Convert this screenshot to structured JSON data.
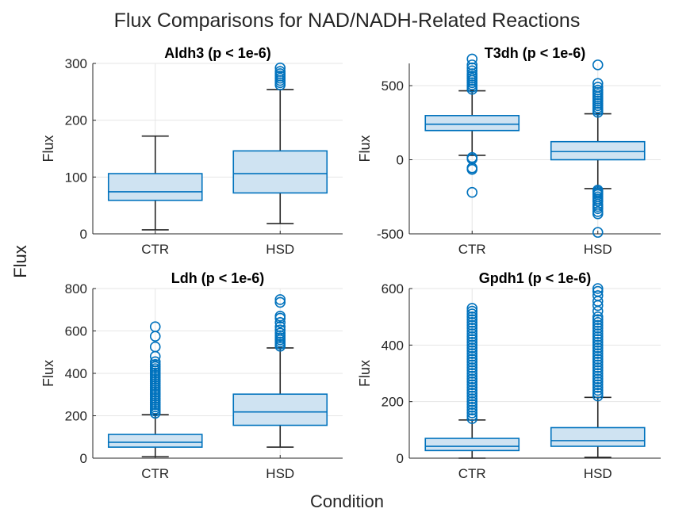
{
  "figure": {
    "title": "Flux Comparisons for NAD/NADH-Related Reactions",
    "xlabel": "Condition",
    "ylabel": "Flux"
  },
  "colors": {
    "box_fill": "#cfe3f2",
    "box_edge": "#0072bd",
    "whisker": "#262626",
    "outlier": "#0072bd",
    "grid": "#e6e6e6",
    "axis": "#262626"
  },
  "chart_data": [
    {
      "type": "box",
      "title": "Aldh3 (p < 1e-6)",
      "ylabel": "Flux",
      "ylim": [
        0,
        300
      ],
      "yticks": [
        0,
        100,
        200,
        300
      ],
      "ytick_labels": [
        "0",
        "100",
        "200",
        "300"
      ],
      "categories": [
        "CTR",
        "HSD"
      ],
      "grid": true,
      "boxes": [
        {
          "category": "CTR",
          "whisker_low": 7,
          "q1": 59,
          "median": 74,
          "q3": 106,
          "whisker_high": 172,
          "outliers": []
        },
        {
          "category": "HSD",
          "whisker_low": 18,
          "q1": 72,
          "median": 106,
          "q3": 146,
          "whisker_high": 254,
          "outliers": [
            262,
            266,
            270,
            274,
            278,
            282,
            286,
            292
          ]
        }
      ]
    },
    {
      "type": "box",
      "title": "T3dh (p < 1e-6)",
      "ylabel": "Flux",
      "ylim": [
        -500,
        650
      ],
      "yticks": [
        -500,
        0,
        500
      ],
      "ytick_labels": [
        "-500",
        "0",
        "500"
      ],
      "categories": [
        "CTR",
        "HSD"
      ],
      "grid": true,
      "boxes": [
        {
          "category": "CTR",
          "whisker_low": 30,
          "q1": 197,
          "median": 240,
          "q3": 298,
          "whisker_high": 465,
          "outliers": [
            475,
            490,
            505,
            520,
            535,
            550,
            565,
            580,
            600,
            620,
            640,
            680,
            15,
            5,
            -55,
            -65,
            -220
          ]
        },
        {
          "category": "HSD",
          "whisker_low": -195,
          "q1": 0,
          "median": 55,
          "q3": 122,
          "whisker_high": 310,
          "outliers": [
            320,
            335,
            350,
            365,
            380,
            395,
            410,
            425,
            440,
            455,
            470,
            490,
            515,
            640,
            -205,
            -215,
            -225,
            -235,
            -250,
            -265,
            -280,
            -300,
            -315,
            -330,
            -350,
            -365,
            -490
          ]
        }
      ]
    },
    {
      "type": "box",
      "title": "Ldh (p < 1e-6)",
      "ylabel": "Flux",
      "ylim": [
        0,
        800
      ],
      "yticks": [
        0,
        200,
        400,
        600,
        800
      ],
      "ytick_labels": [
        "0",
        "200",
        "400",
        "600",
        "800"
      ],
      "categories": [
        "CTR",
        "HSD"
      ],
      "grid": true,
      "boxes": [
        {
          "category": "CTR",
          "whisker_low": 7,
          "q1": 52,
          "median": 75,
          "q3": 112,
          "whisker_high": 205,
          "outliers": [
            212,
            222,
            232,
            242,
            252,
            262,
            272,
            282,
            292,
            302,
            312,
            322,
            332,
            342,
            352,
            362,
            372,
            382,
            392,
            402,
            412,
            422,
            432,
            442,
            455,
            480,
            525,
            575,
            620
          ]
        },
        {
          "category": "HSD",
          "whisker_low": 52,
          "q1": 155,
          "median": 218,
          "q3": 302,
          "whisker_high": 520,
          "outliers": [
            528,
            538,
            548,
            558,
            568,
            578,
            590,
            605,
            620,
            640,
            660,
            670,
            735,
            748
          ]
        }
      ]
    },
    {
      "type": "box",
      "title": "Gpdh1 (p < 1e-6)",
      "ylabel": "Flux",
      "ylim": [
        0,
        600
      ],
      "yticks": [
        0,
        200,
        400,
        600
      ],
      "ytick_labels": [
        "0",
        "200",
        "400",
        "600"
      ],
      "categories": [
        "CTR",
        "HSD"
      ],
      "grid": true,
      "boxes": [
        {
          "category": "CTR",
          "whisker_low": 0,
          "q1": 27,
          "median": 42,
          "q3": 70,
          "whisker_high": 135,
          "outliers": [
            140,
            150,
            160,
            170,
            180,
            190,
            200,
            210,
            220,
            230,
            240,
            250,
            260,
            270,
            280,
            290,
            300,
            310,
            320,
            330,
            340,
            350,
            360,
            370,
            380,
            390,
            400,
            410,
            420,
            430,
            440,
            450,
            460,
            470,
            480,
            490,
            500,
            510,
            520,
            530
          ]
        },
        {
          "category": "HSD",
          "whisker_low": 3,
          "q1": 42,
          "median": 62,
          "q3": 108,
          "whisker_high": 215,
          "outliers": [
            220,
            230,
            240,
            250,
            260,
            270,
            280,
            290,
            300,
            310,
            320,
            330,
            340,
            350,
            360,
            370,
            380,
            390,
            400,
            410,
            420,
            430,
            440,
            450,
            460,
            470,
            480,
            490,
            500,
            520,
            540,
            555,
            575,
            590,
            600
          ]
        }
      ]
    }
  ]
}
